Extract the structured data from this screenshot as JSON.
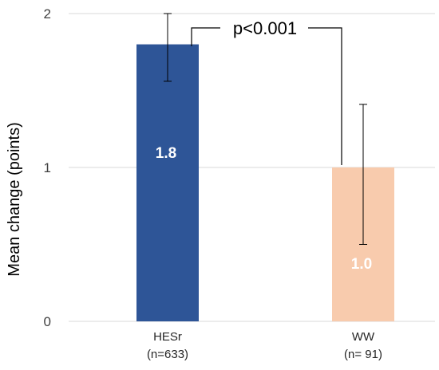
{
  "chart_data": {
    "type": "bar",
    "categories": [
      "HESr",
      "WW"
    ],
    "category_sublabels": [
      "(n=633)",
      "(n= 91)"
    ],
    "values": [
      1.8,
      1.0
    ],
    "value_labels": [
      "1.8",
      "1.0"
    ],
    "error_bars": [
      {
        "low": 1.56,
        "high": 2.0
      },
      {
        "low": 0.5,
        "high": 1.41
      }
    ],
    "colors": [
      "#2e5597",
      "#f8cbad"
    ],
    "ylabel": "Mean change (points)",
    "xlabel": "",
    "ylim": [
      0,
      2
    ],
    "yticks": [
      "0",
      "1",
      "2"
    ],
    "grid": true,
    "annotation": "p<0.001"
  }
}
